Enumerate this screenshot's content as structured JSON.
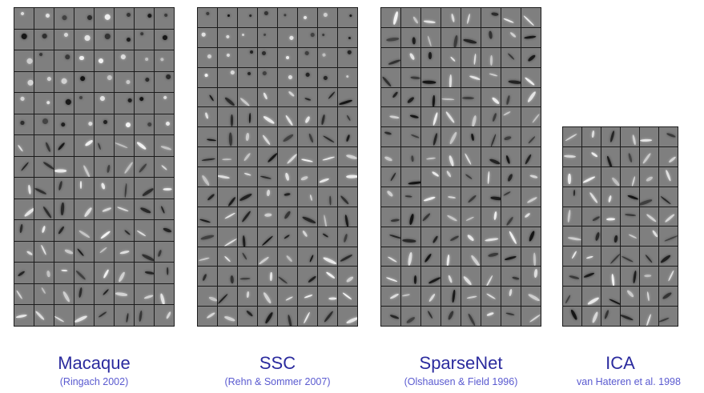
{
  "colors": {
    "label_main": "#2b2b9e",
    "label_cite": "#5a5ad0",
    "border": "#1c1c1c",
    "tile_bg": "#7f7f7f"
  },
  "panels": [
    {
      "title": "Macaque",
      "citation": "(Ringach 2002)",
      "rows": 15,
      "cols": 8
    },
    {
      "title": "SSC",
      "citation": "(Rehn & Sommer 2007)",
      "rows": 16,
      "cols": 8
    },
    {
      "title": "SparseNet",
      "citation": "(Olshausen & Field 1996)",
      "rows": 16,
      "cols": 8
    },
    {
      "title": "ICA",
      "citation": "van Hateren et al. 1998",
      "rows": 10,
      "cols": 6
    }
  ]
}
